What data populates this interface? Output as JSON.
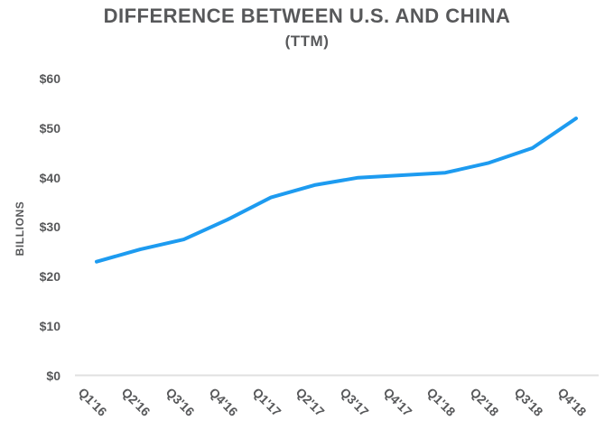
{
  "title": "DIFFERENCE BETWEEN U.S. AND CHINA",
  "subtitle": "(TTM)",
  "chart_data": {
    "type": "line",
    "title": "DIFFERENCE BETWEEN U.S. AND CHINA",
    "subtitle": "(TTM)",
    "xlabel": "",
    "ylabel": "BILLIONS",
    "categories": [
      "Q1'16",
      "Q2'16",
      "Q3'16",
      "Q4'16",
      "Q1'17",
      "Q2'17",
      "Q3'17",
      "Q4'17",
      "Q1'18",
      "Q2'18",
      "Q3'18",
      "Q4'18"
    ],
    "values": [
      23,
      25.5,
      27.5,
      31.5,
      36,
      38.5,
      40,
      40.5,
      41,
      43,
      46,
      52
    ],
    "unit": "USD billions",
    "ylim": [
      0,
      60
    ],
    "y_ticks": [
      0,
      10,
      20,
      30,
      40,
      50,
      60
    ],
    "y_tick_labels": [
      "$0",
      "$10",
      "$20",
      "$30",
      "$40",
      "$50",
      "$60"
    ],
    "grid": false,
    "legend": false,
    "line_color": "#1d9bf0",
    "baseline_color": "#e0e0e0",
    "text_color": "#57585a",
    "background_color": "#ffffff"
  }
}
